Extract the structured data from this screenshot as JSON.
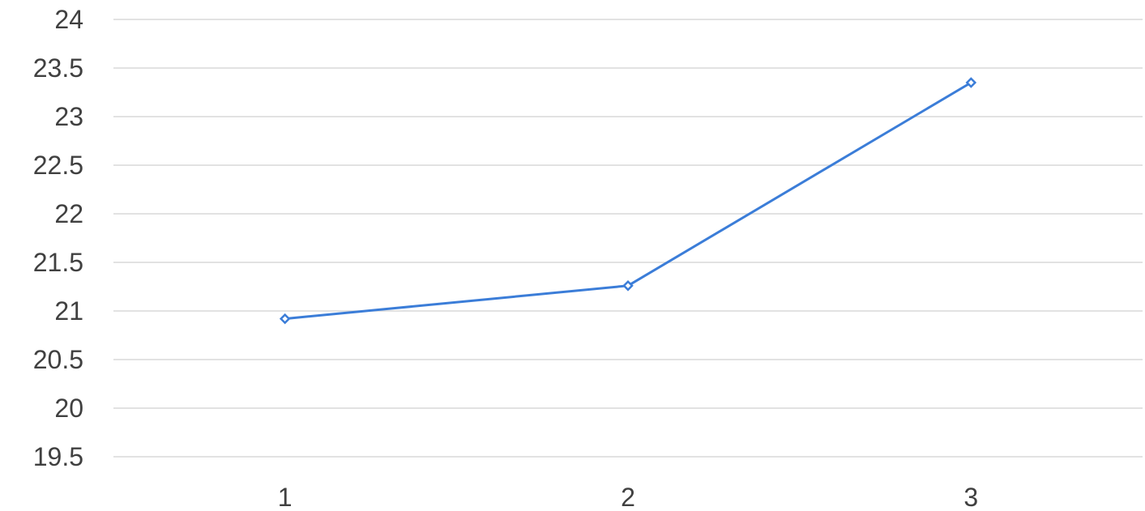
{
  "chart_data": {
    "type": "line",
    "title": "",
    "xlabel": "",
    "ylabel": "",
    "categories": [
      "1",
      "2",
      "3"
    ],
    "series": [
      {
        "values": [
          20.92,
          21.26,
          23.35
        ],
        "color": "#3b7dd8"
      }
    ],
    "ylim": [
      19.5,
      24
    ],
    "yticks": [
      "19.5",
      "20",
      "20.5",
      "21",
      "21.5",
      "22",
      "22.5",
      "23",
      "23.5",
      "24"
    ],
    "grid": true,
    "legend": "none",
    "marker": "diamond"
  }
}
